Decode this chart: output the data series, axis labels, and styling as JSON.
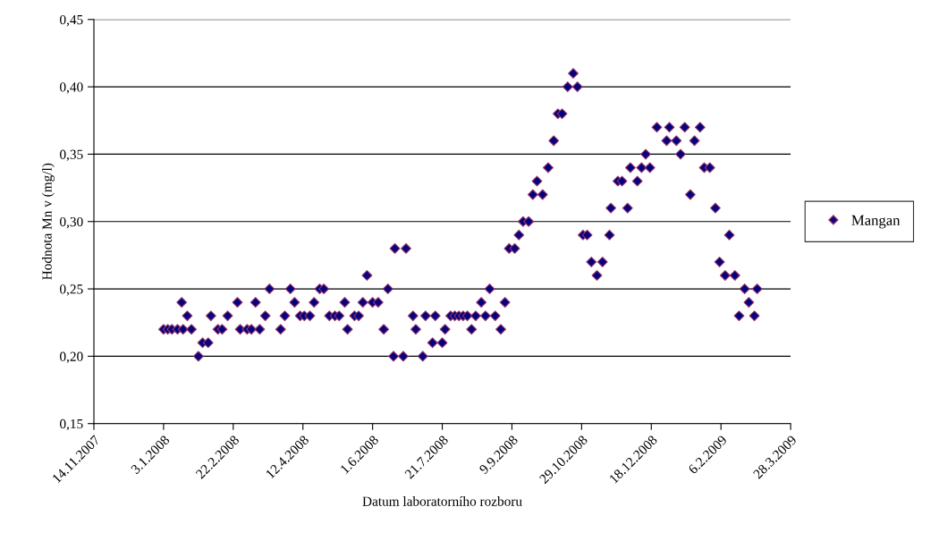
{
  "chart_data": {
    "type": "scatter",
    "xlabel": "Datum laboratorního rozboru",
    "ylabel": "Hodnota Mn v (mg/l)",
    "x": [
      "2008-01-03",
      "2008-01-06",
      "2008-01-09",
      "2008-01-13",
      "2008-01-16",
      "2008-01-17",
      "2008-01-20",
      "2008-01-23",
      "2008-01-28",
      "2008-01-31",
      "2008-02-04",
      "2008-02-06",
      "2008-02-11",
      "2008-02-14",
      "2008-02-18",
      "2008-02-25",
      "2008-02-27",
      "2008-03-03",
      "2008-03-06",
      "2008-03-09",
      "2008-03-12",
      "2008-03-16",
      "2008-03-19",
      "2008-03-27",
      "2008-03-30",
      "2008-04-03",
      "2008-04-06",
      "2008-04-10",
      "2008-04-13",
      "2008-04-17",
      "2008-04-20",
      "2008-04-24",
      "2008-04-27",
      "2008-05-01",
      "2008-05-05",
      "2008-05-08",
      "2008-05-12",
      "2008-05-14",
      "2008-05-19",
      "2008-05-22",
      "2008-05-25",
      "2008-05-28",
      "2008-06-01",
      "2008-06-05",
      "2008-06-09",
      "2008-06-12",
      "2008-06-16",
      "2008-06-17",
      "2008-06-23",
      "2008-06-25",
      "2008-06-30",
      "2008-07-02",
      "2008-07-07",
      "2008-07-09",
      "2008-07-14",
      "2008-07-16",
      "2008-07-21",
      "2008-07-23",
      "2008-07-27",
      "2008-07-30",
      "2008-08-02",
      "2008-08-05",
      "2008-08-08",
      "2008-08-11",
      "2008-08-14",
      "2008-08-18",
      "2008-08-21",
      "2008-08-24",
      "2008-08-28",
      "2008-09-01",
      "2008-09-04",
      "2008-09-07",
      "2008-09-11",
      "2008-09-14",
      "2008-09-17",
      "2008-09-21",
      "2008-09-24",
      "2008-09-27",
      "2008-10-01",
      "2008-10-05",
      "2008-10-09",
      "2008-10-12",
      "2008-10-15",
      "2008-10-19",
      "2008-10-23",
      "2008-10-26",
      "2008-10-30",
      "2008-11-02",
      "2008-11-05",
      "2008-11-09",
      "2008-11-13",
      "2008-11-18",
      "2008-11-19",
      "2008-11-24",
      "2008-11-27",
      "2008-12-01",
      "2008-12-03",
      "2008-12-08",
      "2008-12-11",
      "2008-12-14",
      "2008-12-17",
      "2008-12-22",
      "2008-12-29",
      "2008-12-31",
      "2009-01-05",
      "2009-01-08",
      "2009-01-11",
      "2009-01-15",
      "2009-01-18",
      "2009-01-22",
      "2009-01-25",
      "2009-01-29",
      "2009-02-02",
      "2009-02-05",
      "2009-02-09",
      "2009-02-12",
      "2009-02-16",
      "2009-02-19",
      "2009-02-23",
      "2009-02-26",
      "2009-03-02",
      "2009-03-04"
    ],
    "series": [
      {
        "name": "Mangan",
        "color": "#000080",
        "values": [
          0.22,
          0.22,
          0.22,
          0.22,
          0.24,
          0.22,
          0.23,
          0.22,
          0.2,
          0.21,
          0.21,
          0.23,
          0.22,
          0.22,
          0.23,
          0.24,
          0.22,
          0.22,
          0.22,
          0.24,
          0.22,
          0.23,
          0.25,
          0.22,
          0.23,
          0.25,
          0.24,
          0.23,
          0.23,
          0.23,
          0.24,
          0.25,
          0.25,
          0.23,
          0.23,
          0.23,
          0.24,
          0.22,
          0.23,
          0.23,
          0.24,
          0.26,
          0.24,
          0.24,
          0.22,
          0.25,
          0.2,
          0.28,
          0.2,
          0.28,
          0.23,
          0.22,
          0.2,
          0.23,
          0.21,
          0.23,
          0.21,
          0.22,
          0.23,
          0.23,
          0.23,
          0.23,
          0.23,
          0.22,
          0.23,
          0.24,
          0.23,
          0.25,
          0.23,
          0.22,
          0.24,
          0.28,
          0.28,
          0.29,
          0.3,
          0.3,
          0.32,
          0.33,
          0.32,
          0.34,
          0.36,
          0.38,
          0.38,
          0.4,
          0.41,
          0.4,
          0.29,
          0.29,
          0.27,
          0.26,
          0.27,
          0.29,
          0.31,
          0.33,
          0.33,
          0.31,
          0.34,
          0.33,
          0.34,
          0.35,
          0.34,
          0.37,
          0.36,
          0.37,
          0.36,
          0.35,
          0.37,
          0.32,
          0.36,
          0.37,
          0.34,
          0.34,
          0.31,
          0.27,
          0.26,
          0.29,
          0.26,
          0.23,
          0.25,
          0.24,
          0.23,
          0.25
        ]
      }
    ],
    "xlim": [
      "2007-11-14",
      "2009-03-28"
    ],
    "xticks": [
      {
        "value": "2007-11-14",
        "label": "14.11.2007"
      },
      {
        "value": "2008-01-03",
        "label": "3.1.2008"
      },
      {
        "value": "2008-02-22",
        "label": "22.2.2008"
      },
      {
        "value": "2008-04-12",
        "label": "12.4.2008"
      },
      {
        "value": "2008-06-01",
        "label": "1.6.2008"
      },
      {
        "value": "2008-07-21",
        "label": "21.7.2008"
      },
      {
        "value": "2008-09-09",
        "label": "9.9.2008"
      },
      {
        "value": "2008-10-29",
        "label": "29.10.2008"
      },
      {
        "value": "2008-12-18",
        "label": "18.12.2008"
      },
      {
        "value": "2009-02-06",
        "label": "6.2.2009"
      },
      {
        "value": "2009-03-28",
        "label": "28.3.2009"
      }
    ],
    "ylim": [
      0.15,
      0.45
    ],
    "yticks": [
      {
        "value": 0.15,
        "label": "0,15"
      },
      {
        "value": 0.2,
        "label": "0,20"
      },
      {
        "value": 0.25,
        "label": "0,25"
      },
      {
        "value": 0.3,
        "label": "0,30"
      },
      {
        "value": 0.35,
        "label": "0,35"
      },
      {
        "value": 0.4,
        "label": "0,40"
      },
      {
        "value": 0.45,
        "label": "0,45"
      }
    ],
    "grid": "y",
    "legend": "right",
    "marker": "diamond"
  }
}
